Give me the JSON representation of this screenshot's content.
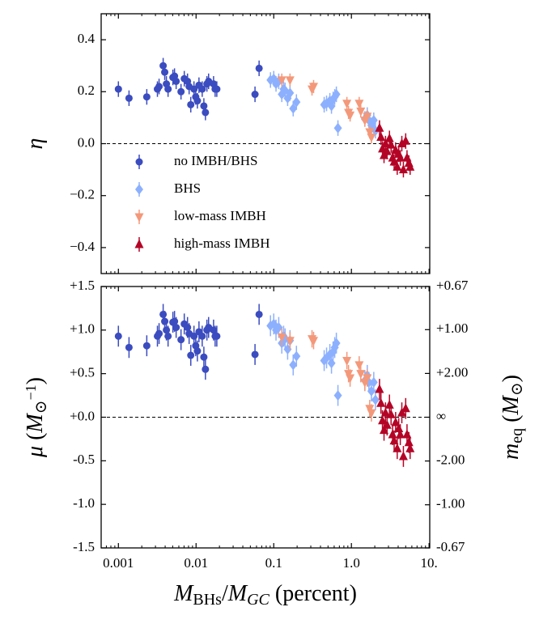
{
  "chart_data": [
    {
      "type": "scatter",
      "xscale": "log",
      "xlim": [
        0.0006,
        10.2
      ],
      "xticks": [
        0.001,
        0.01,
        0.1,
        1,
        10
      ],
      "xticklabels": false,
      "ylim": [
        -0.5,
        0.5
      ],
      "yticks": [
        0.4,
        0.2,
        {
          "value": 0,
          "label": "0.0"
        },
        {
          "value": -0.2,
          "label": "−0.2"
        },
        {
          "value": -0.4,
          "label": "−0.4"
        }
      ],
      "ylabel": [
        {
          "text": "η",
          "style": "it"
        }
      ],
      "hline": 0,
      "legend": "lower left",
      "series": [
        {
          "name": "no IMBH/BHS",
          "color": "#3b4cc0",
          "marker": "circle",
          "yerr": 0.03,
          "x": [
            0.001,
            0.00137,
            0.00232,
            0.00318,
            0.00334,
            0.00377,
            0.00395,
            0.00415,
            0.00436,
            0.00503,
            0.00528,
            0.00554,
            0.0064,
            0.00705,
            0.00776,
            0.00814,
            0.00855,
            0.0094,
            0.0099,
            0.0104,
            0.0109,
            0.012,
            0.0126,
            0.0132,
            0.0138,
            0.0145,
            0.0168,
            0.0176,
            0.0185,
            0.0574,
            0.0648
          ],
          "values": [
            0.21,
            0.175,
            0.18,
            0.21,
            0.22,
            0.3,
            0.275,
            0.23,
            0.21,
            0.255,
            0.26,
            0.24,
            0.2,
            0.25,
            0.24,
            0.22,
            0.15,
            0.21,
            0.18,
            0.165,
            0.225,
            0.21,
            0.145,
            0.12,
            0.23,
            0.24,
            0.23,
            0.21,
            0.21,
            0.19,
            0.29
          ]
        },
        {
          "name": "BHS",
          "color": "#8db0fe",
          "marker": "diamond",
          "yerr": 0.03,
          "x": [
            0.0908,
            0.1,
            0.107,
            0.116,
            0.127,
            0.134,
            0.14,
            0.151,
            0.162,
            0.178,
            0.196,
            0.446,
            0.479,
            0.528,
            0.554,
            0.581,
            0.61,
            0.64,
            0.671,
            1.49,
            1.6,
            1.68,
            1.81,
            1.94,
            2.04
          ],
          "values": [
            0.245,
            0.25,
            0.23,
            0.24,
            0.19,
            0.21,
            0.205,
            0.175,
            0.195,
            0.135,
            0.16,
            0.15,
            0.155,
            0.165,
            0.145,
            0.17,
            0.18,
            0.19,
            0.06,
            0.095,
            0.11,
            0.09,
            0.07,
            0.09,
            0.05
          ]
        },
        {
          "name": "low-mass IMBH",
          "color": "#f4987a",
          "marker": "down",
          "yerr": 0.025,
          "x": [
            0.127,
            0.162,
            0.311,
            0.326,
            0.875,
            0.918,
            0.962,
            1.26,
            1.32,
            1.49,
            1.6,
            1.72,
            1.81
          ],
          "values": [
            0.245,
            0.245,
            0.21,
            0.22,
            0.155,
            0.12,
            0.11,
            0.155,
            0.125,
            0.09,
            0.105,
            0.045,
            0.025
          ]
        },
        {
          "name": "high-mass IMBH",
          "color": "#b40426",
          "marker": "up",
          "yerr": 0.03,
          "x": [
            2.3,
            2.4,
            2.51,
            2.63,
            2.75,
            2.88,
            3.09,
            3.24,
            3.39,
            3.55,
            3.71,
            3.89,
            4.07,
            4.26,
            4.46,
            4.67,
            5.0,
            5.2,
            5.5,
            5.7
          ],
          "values": [
            0.06,
            0.025,
            -0.02,
            -0.045,
            0.0,
            -0.03,
            0.02,
            -0.005,
            -0.055,
            -0.07,
            -0.025,
            -0.09,
            -0.04,
            -0.055,
            0.0,
            -0.1,
            0.01,
            -0.055,
            -0.075,
            -0.09
          ]
        }
      ]
    },
    {
      "type": "scatter",
      "xscale": "log",
      "xlim": [
        0.0006,
        10.2
      ],
      "xticks": [
        0.001,
        0.01,
        0.1,
        {
          "value": 1,
          "label": "1.0"
        },
        {
          "value": 10,
          "label": "10."
        }
      ],
      "xlabel": [
        {
          "text": "M",
          "style": "it"
        },
        {
          "text": "BHs",
          "style": "sub"
        },
        {
          "text": "/",
          "style": "normal"
        },
        {
          "text": "M",
          "style": "it"
        },
        {
          "text": "GC",
          "style": "subit"
        },
        {
          "text": " (percent)",
          "style": "normal"
        }
      ],
      "ylim": [
        -1.5,
        1.5
      ],
      "yticks": [
        {
          "value": 1.5,
          "label": "+1.5"
        },
        {
          "value": 1,
          "label": "+1.0"
        },
        {
          "value": 0.5,
          "label": "+0.5"
        },
        {
          "value": 0,
          "label": "+0.0"
        },
        {
          "value": -0.5,
          "label": "-0.5"
        },
        {
          "value": -1,
          "label": "-1.0"
        },
        {
          "value": -1.5,
          "label": "-1.5"
        }
      ],
      "ylabel": [
        {
          "text": "μ",
          "style": "it"
        },
        {
          "text": " (",
          "style": "normal"
        },
        {
          "text": "M",
          "style": "it"
        },
        {
          "text": "⊙",
          "style": "sub"
        },
        {
          "text": "−1",
          "style": "sup"
        },
        {
          "text": ")",
          "style": "normal"
        }
      ],
      "y2scale": "reciprocal",
      "y2lim": [
        -0.67,
        0.67
      ],
      "y2ticks": [
        {
          "value": 0.67,
          "label": "+0.67"
        },
        {
          "value": 1,
          "label": "+1.00"
        },
        {
          "value": 2,
          "label": "+2.00"
        },
        {
          "value": null,
          "label": "∞"
        },
        {
          "value": -2,
          "label": "-2.00"
        },
        {
          "value": -1,
          "label": "-1.00"
        },
        {
          "value": -0.67,
          "label": "-0.67"
        }
      ],
      "y2label": [
        {
          "text": "m",
          "style": "it"
        },
        {
          "text": "eq",
          "style": "sub"
        },
        {
          "text": " (",
          "style": "normal"
        },
        {
          "text": "M",
          "style": "it"
        },
        {
          "text": "⊙",
          "style": "sub"
        },
        {
          "text": ")",
          "style": "normal"
        }
      ],
      "hline": 0,
      "series": [
        {
          "color": "#3b4cc0",
          "marker": "circle",
          "yerr": 0.12,
          "x": [
            0.001,
            0.00137,
            0.00232,
            0.00318,
            0.00334,
            0.00377,
            0.00395,
            0.00415,
            0.00436,
            0.00503,
            0.00528,
            0.00554,
            0.0064,
            0.00705,
            0.00776,
            0.00814,
            0.00855,
            0.0094,
            0.0099,
            0.0104,
            0.0109,
            0.012,
            0.0126,
            0.0132,
            0.0138,
            0.0145,
            0.0168,
            0.0176,
            0.0185,
            0.0574,
            0.0648
          ],
          "values": [
            0.93,
            0.8,
            0.82,
            0.93,
            0.96,
            1.18,
            1.1,
            1.0,
            0.93,
            1.09,
            1.1,
            1.03,
            0.89,
            1.07,
            1.03,
            0.96,
            0.71,
            0.93,
            0.82,
            0.76,
            0.98,
            0.93,
            0.69,
            0.55,
            1.0,
            1.03,
            1.0,
            0.93,
            0.93,
            0.72,
            1.18
          ]
        },
        {
          "color": "#8db0fe",
          "marker": "diamond",
          "yerr": 0.12,
          "x": [
            0.0908,
            0.1,
            0.107,
            0.116,
            0.127,
            0.134,
            0.14,
            0.151,
            0.162,
            0.178,
            0.196,
            0.446,
            0.479,
            0.528,
            0.554,
            0.581,
            0.61,
            0.64,
            0.671,
            1.49,
            1.6,
            1.68,
            1.81,
            1.94,
            2.04
          ],
          "values": [
            1.05,
            1.07,
            1.0,
            1.03,
            0.85,
            0.93,
            0.9,
            0.78,
            0.88,
            0.6,
            0.7,
            0.65,
            0.68,
            0.72,
            0.62,
            0.75,
            0.8,
            0.85,
            0.25,
            0.42,
            0.48,
            0.4,
            0.3,
            0.4,
            0.2
          ]
        },
        {
          "color": "#f4987a",
          "marker": "down",
          "yerr": 0.1,
          "x": [
            0.127,
            0.162,
            0.311,
            0.326,
            0.875,
            0.918,
            0.962,
            1.26,
            1.32,
            1.49,
            1.6,
            1.72,
            1.81
          ],
          "values": [
            0.92,
            0.88,
            0.9,
            0.88,
            0.65,
            0.5,
            0.45,
            0.6,
            0.5,
            0.4,
            0.45,
            0.1,
            0.05
          ]
        },
        {
          "color": "#b40426",
          "marker": "up",
          "yerr": 0.12,
          "x": [
            2.3,
            2.4,
            2.51,
            2.63,
            2.75,
            2.88,
            3.09,
            3.24,
            3.39,
            3.55,
            3.71,
            3.89,
            4.07,
            4.26,
            4.46,
            4.67,
            5.0,
            5.2,
            5.5,
            5.7
          ],
          "values": [
            0.32,
            0.16,
            -0.04,
            -0.15,
            0.05,
            -0.09,
            0.14,
            0.03,
            -0.2,
            -0.27,
            -0.06,
            -0.36,
            -0.13,
            -0.2,
            0.05,
            -0.45,
            0.1,
            -0.2,
            -0.29,
            -0.36
          ]
        }
      ]
    }
  ]
}
